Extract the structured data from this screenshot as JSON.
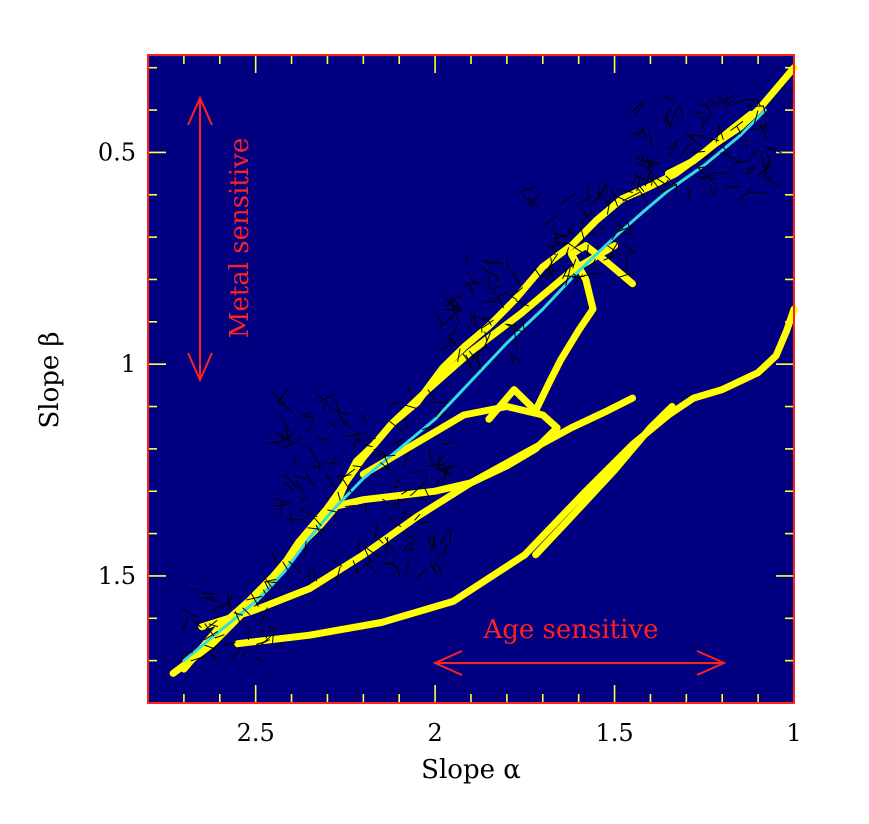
{
  "chart_data": {
    "type": "scatter",
    "title": "",
    "xlabel": "Slope α",
    "ylabel": "Slope β",
    "xlim": [
      2.8,
      1.0
    ],
    "ylim": [
      1.8,
      0.27
    ],
    "x_reversed": true,
    "y_reversed": true,
    "x_major_ticks": [
      2.5,
      2,
      1.5,
      1
    ],
    "x_tick_labels": [
      "2.5",
      "2",
      "1.5",
      "1"
    ],
    "x_minor_step": 0.1,
    "y_major_ticks": [
      0.5,
      1,
      1.5
    ],
    "y_tick_labels": [
      "0.5",
      "1",
      "1.5"
    ],
    "y_minor_step": 0.1,
    "grid": false,
    "background": "#000080",
    "frame_color": "#ff2020",
    "tick_color": "#ffff40",
    "series": [
      {
        "style": "thick-track",
        "color": "#ffff00",
        "x": [
          2.73,
          2.62,
          2.55,
          2.45,
          2.38,
          2.3,
          2.25,
          2.22,
          2.17,
          2.12,
          2.05,
          1.98,
          1.92,
          1.85,
          1.78,
          1.7,
          1.62,
          1.55,
          1.48,
          1.4,
          1.33,
          1.25,
          1.18,
          1.12
        ],
        "y": [
          1.73,
          1.66,
          1.6,
          1.51,
          1.42,
          1.34,
          1.28,
          1.23,
          1.19,
          1.14,
          1.09,
          1.01,
          0.96,
          0.91,
          0.85,
          0.77,
          0.72,
          0.66,
          0.61,
          0.58,
          0.55,
          0.5,
          0.45,
          0.41
        ]
      },
      {
        "style": "thick-track",
        "color": "#ffff00",
        "x": [
          2.65,
          2.5,
          2.35,
          2.2,
          2.05,
          1.9,
          1.75,
          1.62,
          1.52,
          1.45
        ],
        "y": [
          1.62,
          1.58,
          1.53,
          1.45,
          1.36,
          1.28,
          1.21,
          1.15,
          1.11,
          1.08
        ]
      },
      {
        "style": "thick-track",
        "color": "#ffff00",
        "x": [
          2.55,
          2.35,
          2.15,
          1.95,
          1.75,
          1.58,
          1.45,
          1.35,
          1.28,
          1.2,
          1.15,
          1.1,
          1.05,
          1.02,
          1.0
        ],
        "y": [
          1.66,
          1.64,
          1.61,
          1.56,
          1.45,
          1.3,
          1.19,
          1.12,
          1.08,
          1.06,
          1.04,
          1.02,
          0.98,
          0.92,
          0.87
        ]
      },
      {
        "style": "thick-track",
        "color": "#ffff00",
        "x": [
          2.7,
          2.6,
          2.52,
          2.45,
          2.38,
          2.32,
          2.28,
          2.25,
          2.2,
          2.12,
          2.02,
          1.9,
          1.76,
          1.62,
          1.5
        ],
        "y": [
          1.72,
          1.62,
          1.56,
          1.5,
          1.43,
          1.38,
          1.34,
          1.28,
          1.22,
          1.14,
          1.06,
          0.97,
          0.88,
          0.78,
          0.72
        ]
      },
      {
        "style": "thick-track",
        "color": "#ffff00",
        "x": [
          1.85,
          1.78,
          1.72,
          1.68,
          1.65,
          1.6,
          1.56,
          1.58,
          1.62,
          1.58,
          1.52,
          1.45
        ],
        "y": [
          1.13,
          1.06,
          1.11,
          1.04,
          0.99,
          0.92,
          0.87,
          0.8,
          0.74,
          0.72,
          0.76,
          0.81
        ]
      },
      {
        "style": "thick-track",
        "color": "#ffff00",
        "x": [
          2.3,
          2.2,
          2.1,
          2.0,
          1.9,
          1.8,
          1.72,
          1.66,
          1.7,
          1.8,
          1.92,
          2.02,
          2.12,
          2.2
        ],
        "y": [
          1.34,
          1.32,
          1.31,
          1.3,
          1.28,
          1.24,
          1.2,
          1.15,
          1.12,
          1.1,
          1.12,
          1.17,
          1.22,
          1.26
        ]
      },
      {
        "style": "thick-track",
        "color": "#ffff00",
        "x": [
          1.72,
          1.62,
          1.5,
          1.4,
          1.34
        ],
        "y": [
          1.45,
          1.36,
          1.25,
          1.15,
          1.1
        ]
      },
      {
        "style": "thick-track",
        "color": "#ffff00",
        "x": [
          1.35,
          1.28,
          1.22,
          1.15,
          1.1,
          1.05,
          1.0
        ],
        "y": [
          0.55,
          0.52,
          0.48,
          0.44,
          0.4,
          0.35,
          0.3
        ]
      },
      {
        "style": "thin-track",
        "color": "#33dddd",
        "x": [
          2.7,
          2.6,
          2.5,
          2.42,
          2.35,
          2.28,
          2.2,
          2.1,
          2.0,
          1.9,
          1.8,
          1.7,
          1.6,
          1.5,
          1.42,
          1.35,
          1.25,
          1.15,
          1.08
        ],
        "y": [
          1.7,
          1.63,
          1.56,
          1.49,
          1.41,
          1.34,
          1.27,
          1.2,
          1.13,
          1.04,
          0.95,
          0.87,
          0.78,
          0.7,
          0.64,
          0.59,
          0.53,
          0.46,
          0.4
        ]
      }
    ],
    "scatter_regions": [
      {
        "x_range": [
          2.7,
          2.45
        ],
        "y_range": [
          1.7,
          1.5
        ],
        "count": 45
      },
      {
        "x_range": [
          2.45,
          1.95
        ],
        "y_range": [
          1.5,
          1.06
        ],
        "count": 140
      },
      {
        "x_range": [
          2.0,
          1.75
        ],
        "y_range": [
          1.0,
          0.75
        ],
        "count": 55
      },
      {
        "x_range": [
          1.75,
          1.45
        ],
        "y_range": [
          0.8,
          0.58
        ],
        "count": 60
      },
      {
        "x_range": [
          1.45,
          1.05
        ],
        "y_range": [
          0.6,
          0.37
        ],
        "count": 90
      }
    ],
    "annotations": [
      {
        "text": "Metal sensitive",
        "orientation": "vertical",
        "color": "#ff2020"
      },
      {
        "text": "Age sensitive",
        "orientation": "horizontal",
        "color": "#ff2020"
      }
    ]
  }
}
